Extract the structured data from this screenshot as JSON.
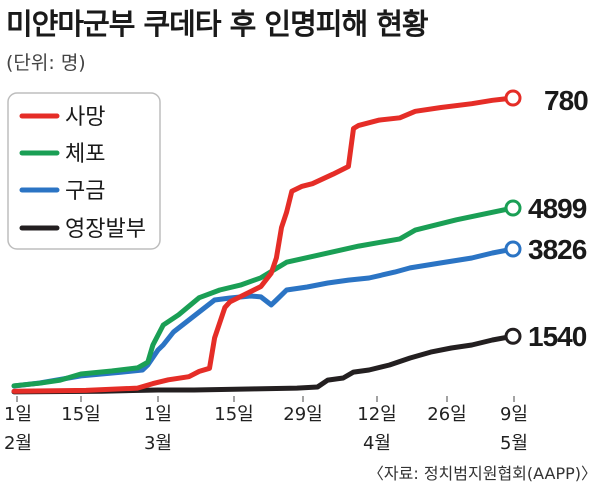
{
  "chart_data": {
    "type": "line",
    "title": "미얀마군부 쿠데타 후 인명피해 현황",
    "unit_note": "(단위: 명)",
    "source": "〈자료: 정치범지원협회(AAPP)〉",
    "legend_position": "top-left",
    "grid": false,
    "y_axis_shown": false,
    "xlim": [
      "02-01",
      "05-09"
    ],
    "x_ticks": [
      {
        "day": "1일",
        "month": "2월"
      },
      {
        "day": "15일"
      },
      {
        "day": "1일",
        "month": "3월"
      },
      {
        "day": "15일"
      },
      {
        "day": "29일"
      },
      {
        "day": "12일",
        "month": "4월"
      },
      {
        "day": "26일"
      },
      {
        "day": "9일",
        "month": "5월"
      }
    ],
    "series": [
      {
        "name": "사망",
        "color": "#e52d27",
        "end_label": "780",
        "points": [
          [
            "02-01",
            10
          ],
          [
            "02-15",
            12
          ],
          [
            "02-25",
            18
          ],
          [
            "02-28",
            30
          ],
          [
            "03-03",
            40
          ],
          [
            "03-07",
            48
          ],
          [
            "03-09",
            62
          ],
          [
            "03-11",
            70
          ],
          [
            "03-12",
            150
          ],
          [
            "03-14",
            230
          ],
          [
            "03-15",
            245
          ],
          [
            "03-18",
            265
          ],
          [
            "03-21",
            285
          ],
          [
            "03-23",
            320
          ],
          [
            "03-24",
            360
          ],
          [
            "03-25",
            440
          ],
          [
            "03-26",
            480
          ],
          [
            "03-27",
            535
          ],
          [
            "03-29",
            548
          ],
          [
            "03-31",
            555
          ],
          [
            "04-04",
            580
          ],
          [
            "04-07",
            600
          ],
          [
            "04-08",
            700
          ],
          [
            "04-09",
            708
          ],
          [
            "04-13",
            722
          ],
          [
            "04-17",
            728
          ],
          [
            "04-20",
            745
          ],
          [
            "04-25",
            755
          ],
          [
            "05-01",
            765
          ],
          [
            "05-05",
            774
          ],
          [
            "05-09",
            780
          ]
        ]
      },
      {
        "name": "체포",
        "color": "#1a9f55",
        "end_label": "4899",
        "points": [
          [
            "02-01",
            240
          ],
          [
            "02-06",
            310
          ],
          [
            "02-10",
            390
          ],
          [
            "02-14",
            550
          ],
          [
            "02-20",
            630
          ],
          [
            "02-25",
            710
          ],
          [
            "02-27",
            860
          ],
          [
            "02-28",
            1310
          ],
          [
            "03-02",
            1830
          ],
          [
            "03-05",
            2100
          ],
          [
            "03-09",
            2550
          ],
          [
            "03-13",
            2750
          ],
          [
            "03-17",
            2880
          ],
          [
            "03-21",
            3070
          ],
          [
            "03-26",
            3480
          ],
          [
            "04-01",
            3660
          ],
          [
            "04-09",
            3900
          ],
          [
            "04-17",
            4090
          ],
          [
            "04-20",
            4320
          ],
          [
            "04-28",
            4590
          ],
          [
            "05-09",
            4899
          ]
        ]
      },
      {
        "name": "구금",
        "color": "#2b74c4",
        "end_label": "3826",
        "points": [
          [
            "02-01",
            236
          ],
          [
            "02-06",
            314
          ],
          [
            "02-14",
            500
          ],
          [
            "02-22",
            600
          ],
          [
            "02-26",
            655
          ],
          [
            "02-27",
            786
          ],
          [
            "03-01",
            1180
          ],
          [
            "03-02",
            1310
          ],
          [
            "03-04",
            1650
          ],
          [
            "03-07",
            1965
          ],
          [
            "03-10",
            2280
          ],
          [
            "03-12",
            2490
          ],
          [
            "03-15",
            2540
          ],
          [
            "03-19",
            2594
          ],
          [
            "03-21",
            2570
          ],
          [
            "03-23",
            2360
          ],
          [
            "03-24",
            2490
          ],
          [
            "03-26",
            2750
          ],
          [
            "03-30",
            2830
          ],
          [
            "04-03",
            2934
          ],
          [
            "04-07",
            3010
          ],
          [
            "04-11",
            3065
          ],
          [
            "04-16",
            3220
          ],
          [
            "04-19",
            3330
          ],
          [
            "04-25",
            3460
          ],
          [
            "05-01",
            3590
          ],
          [
            "05-05",
            3720
          ],
          [
            "05-09",
            3826
          ]
        ]
      },
      {
        "name": "영장발부",
        "color": "#231f20",
        "end_label": "1540",
        "points": [
          [
            "02-01",
            80
          ],
          [
            "02-18",
            100
          ],
          [
            "03-01",
            130
          ],
          [
            "03-08",
            130
          ],
          [
            "03-20",
            160
          ],
          [
            "03-28",
            180
          ],
          [
            "04-01",
            210
          ],
          [
            "04-03",
            390
          ],
          [
            "04-06",
            445
          ],
          [
            "04-08",
            600
          ],
          [
            "04-11",
            655
          ],
          [
            "04-15",
            785
          ],
          [
            "04-19",
            970
          ],
          [
            "04-23",
            1125
          ],
          [
            "04-27",
            1230
          ],
          [
            "05-01",
            1310
          ],
          [
            "05-05",
            1440
          ],
          [
            "05-09",
            1540
          ]
        ]
      }
    ]
  }
}
